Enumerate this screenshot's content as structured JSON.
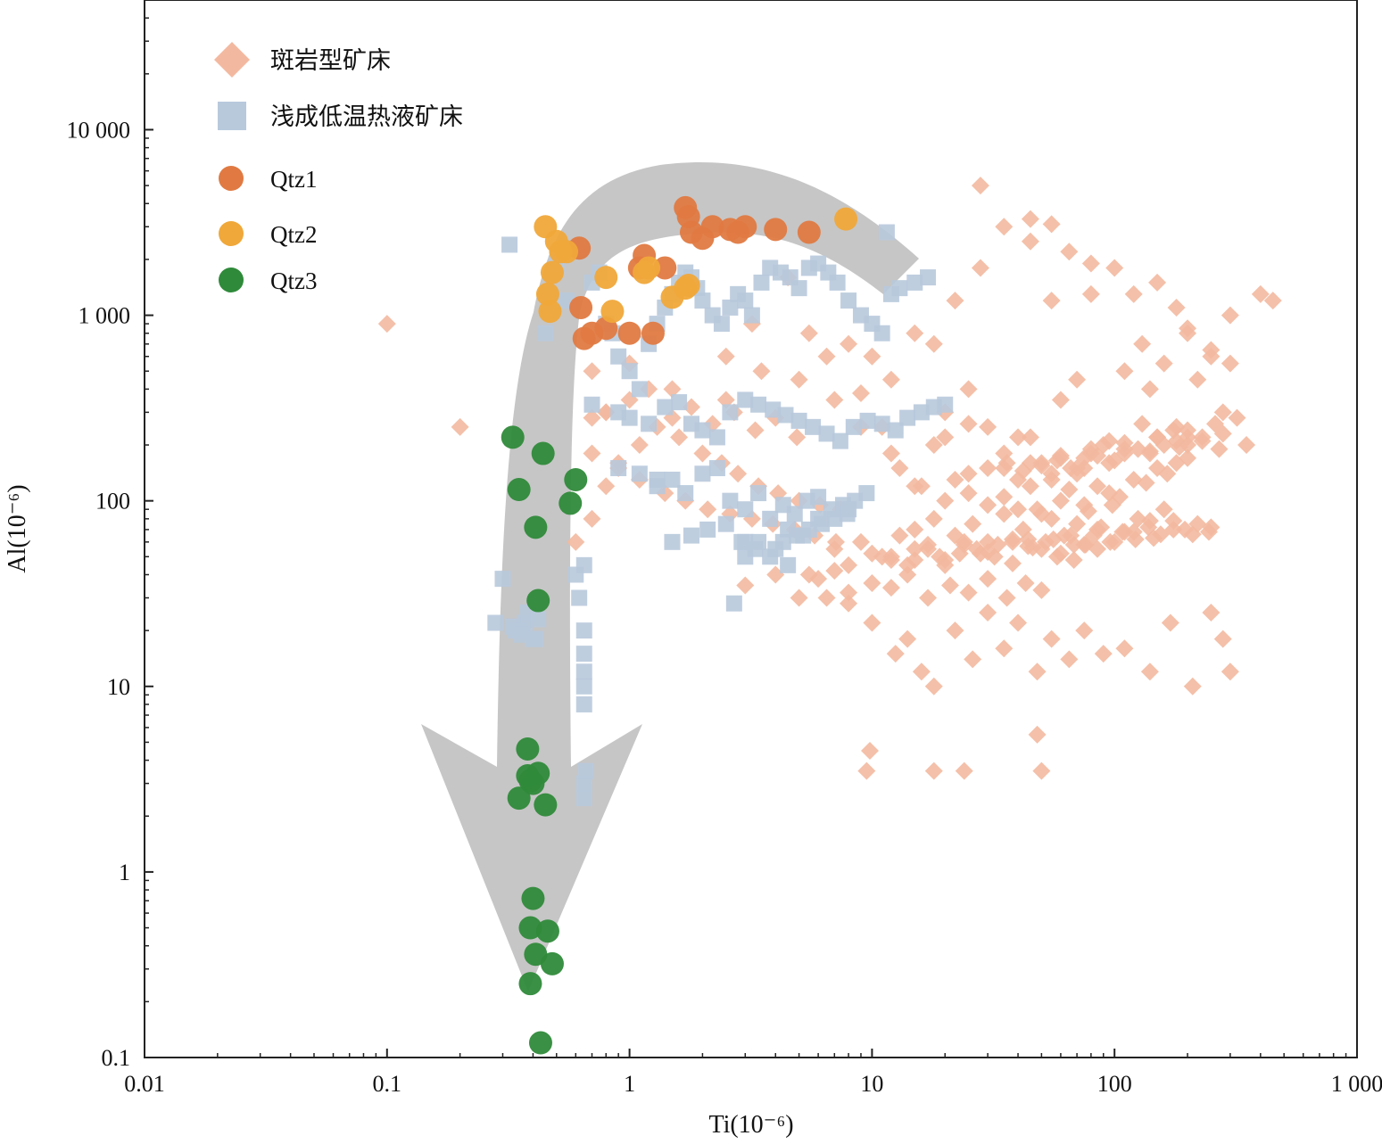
{
  "chart_data": {
    "type": "scatter",
    "title": "",
    "xlabel": "Ti(10⁻⁶)",
    "ylabel": "Al(10⁻⁶)",
    "x_scale": "log",
    "y_scale": "log",
    "xlim": [
      0.01,
      1000
    ],
    "ylim": [
      0.1,
      50000
    ],
    "x_ticks": [
      "0.01",
      "0.1",
      "1",
      "10",
      "100",
      "1 000"
    ],
    "x_tick_values": [
      0.01,
      0.1,
      1,
      10,
      100,
      1000
    ],
    "y_ticks": [
      "0.1",
      "1",
      "10",
      "100",
      "1 000",
      "10 000"
    ],
    "y_tick_values": [
      0.1,
      1,
      10,
      100,
      1000,
      10000
    ],
    "grid": false,
    "legend_position": "top-left",
    "series": [
      {
        "name": "斑岩型矿床",
        "marker": "diamond",
        "color": "#f3b9a0",
        "x": [
          0.1,
          0.2,
          0.7,
          0.7,
          0.8,
          1.0,
          1.5,
          2.5,
          3.2,
          4.5,
          5.5,
          6.5,
          8.0,
          10,
          12,
          15,
          18,
          22,
          28,
          35,
          45,
          55,
          65,
          80,
          100,
          120,
          150,
          180,
          200,
          250,
          300,
          400,
          450,
          28,
          45,
          55,
          80,
          130,
          200,
          250,
          300,
          9,
          12,
          15,
          20,
          25,
          35,
          45,
          60,
          70,
          90,
          110,
          140,
          160,
          180,
          220,
          280,
          350,
          2.5,
          3.5,
          5,
          7,
          9,
          11,
          13,
          16,
          18,
          20,
          22,
          25,
          30,
          35,
          40,
          50,
          60,
          70,
          80,
          95,
          110,
          130,
          150,
          175,
          200,
          230,
          270,
          20,
          25,
          30,
          35,
          40,
          45,
          50,
          55,
          60,
          65,
          70,
          75,
          85,
          95,
          105,
          120,
          135,
          150,
          165,
          180,
          200,
          15,
          18,
          22,
          26,
          30,
          35,
          42,
          48,
          55,
          62,
          70,
          78,
          88,
          98,
          110,
          125,
          140,
          160,
          7,
          9,
          11,
          13,
          15,
          17,
          20,
          23,
          27,
          32,
          38,
          44,
          52,
          60,
          68,
          76,
          85,
          3,
          4,
          5,
          6,
          7,
          8,
          10,
          12,
          14,
          17,
          21,
          25,
          30,
          36,
          43,
          50,
          12,
          14,
          17,
          20,
          24,
          28,
          33,
          38,
          44,
          50,
          58,
          66,
          75,
          85,
          96,
          108,
          122,
          138,
          155,
          175,
          195,
          220,
          245,
          25,
          30,
          36,
          42,
          50,
          58,
          66,
          75,
          85,
          95,
          110,
          125,
          140,
          160,
          180,
          200,
          5.5,
          6.5,
          8,
          10,
          12.5,
          14,
          16,
          18,
          22,
          26,
          30,
          35,
          40,
          48,
          55,
          65,
          75,
          90,
          110,
          140,
          170,
          210,
          250,
          280,
          300,
          9.5,
          9.8,
          18,
          24,
          48,
          50,
          8,
          10,
          12,
          15,
          19,
          24,
          30,
          38,
          46,
          56,
          68,
          82,
          100,
          120,
          145,
          175,
          210,
          250,
          45,
          60,
          80,
          110,
          150,
          200,
          260,
          320,
          40,
          55,
          75,
          100,
          140,
          185,
          230,
          280,
          0.6,
          0.7,
          0.8,
          0.9,
          1.1,
          1.3,
          1.6,
          2.0,
          2.4,
          2.8,
          3.4,
          4.1,
          5.0,
          6.1,
          7.4,
          0.8,
          1.0,
          1.2,
          1.5,
          1.8,
          2.2,
          2.7,
          3.3,
          4.0,
          4.9,
          0.7,
          0.9,
          1.1,
          1.4,
          1.7,
          2.1,
          2.6,
          3.2,
          3.9,
          4.8,
          5.8,
          7.1
        ],
        "y": [
          900,
          250,
          280,
          500,
          300,
          550,
          400,
          350,
          900,
          1600,
          800,
          600,
          700,
          600,
          450,
          800,
          700,
          1200,
          5000,
          3000,
          3300,
          3100,
          2200,
          1900,
          1800,
          1300,
          1500,
          1100,
          850,
          600,
          1000,
          1300,
          1200,
          1800,
          2500,
          1200,
          1300,
          700,
          800,
          650,
          550,
          250,
          180,
          120,
          300,
          400,
          150,
          220,
          350,
          450,
          200,
          500,
          400,
          550,
          250,
          450,
          300,
          200,
          600,
          500,
          450,
          350,
          380,
          250,
          150,
          120,
          200,
          220,
          130,
          260,
          250,
          180,
          220,
          160,
          170,
          150,
          180,
          210,
          190,
          260,
          220,
          240,
          200,
          220,
          190,
          100,
          110,
          95,
          105,
          90,
          120,
          85,
          130,
          100,
          115,
          140,
          95,
          120,
          110,
          105,
          130,
          125,
          150,
          140,
          160,
          170,
          70,
          80,
          65,
          75,
          60,
          85,
          70,
          90,
          80,
          65,
          75,
          88,
          72,
          95,
          68,
          80,
          78,
          90,
          55,
          60,
          50,
          65,
          48,
          58,
          45,
          52,
          55,
          50,
          62,
          57,
          60,
          52,
          48,
          58,
          55,
          35,
          40,
          30,
          38,
          42,
          32,
          36,
          34,
          40,
          30,
          35,
          32,
          38,
          30,
          36,
          33,
          50,
          45,
          55,
          48,
          60,
          52,
          58,
          46,
          62,
          55,
          50,
          65,
          58,
          70,
          60,
          68,
          62,
          72,
          66,
          78,
          70,
          75,
          68,
          140,
          150,
          160,
          145,
          155,
          165,
          150,
          170,
          175,
          160,
          180,
          190,
          185,
          200,
          210,
          220,
          40,
          30,
          28,
          22,
          15,
          18,
          12,
          10,
          20,
          14,
          25,
          16,
          22,
          12,
          18,
          14,
          20,
          15,
          16,
          12,
          22,
          10,
          25,
          18,
          12,
          3.5,
          4.5,
          3.5,
          3.5,
          5.5,
          3.5,
          45,
          52,
          48,
          55,
          50,
          58,
          53,
          60,
          56,
          62,
          58,
          65,
          60,
          68,
          63,
          70,
          66,
          72,
          160,
          175,
          190,
          205,
          220,
          240,
          260,
          280,
          130,
          140,
          150,
          165,
          180,
          195,
          210,
          230,
          60,
          80,
          120,
          160,
          200,
          250,
          220,
          180,
          160,
          140,
          120,
          110,
          100,
          95,
          90,
          300,
          350,
          400,
          280,
          320,
          260,
          300,
          240,
          280,
          220,
          180,
          150,
          130,
          110,
          100,
          90,
          85,
          80,
          75,
          70,
          65,
          60
        ]
      },
      {
        "name": "浅成低温热液矿床",
        "marker": "square",
        "color": "#b8c9dc",
        "x": [
          0.32,
          0.35,
          0.37,
          0.38,
          0.4,
          0.42,
          0.45,
          0.5,
          0.55,
          0.6,
          0.62,
          0.65,
          0.65,
          0.65,
          0.65,
          0.65,
          0.65,
          0.65,
          0.65,
          0.66,
          0.7,
          0.75,
          0.8,
          0.85,
          0.9,
          1.0,
          1.1,
          1.2,
          1.3,
          1.4,
          1.5,
          1.6,
          1.7,
          1.8,
          1.9,
          2.0,
          2.2,
          2.4,
          2.6,
          2.8,
          3.0,
          3.2,
          3.5,
          3.8,
          4.2,
          4.6,
          5.0,
          5.5,
          6.0,
          6.6,
          7.2,
          8.0,
          9.0,
          10,
          11,
          12,
          13,
          15,
          17,
          0.9,
          1.0,
          1.2,
          1.4,
          1.6,
          1.8,
          2.0,
          2.3,
          2.6,
          3.0,
          3.4,
          3.9,
          4.4,
          5.0,
          5.7,
          6.5,
          7.4,
          8.4,
          9.6,
          11,
          12.5,
          14,
          16,
          18,
          20,
          1.3,
          1.5,
          1.7,
          2.0,
          2.3,
          2.6,
          3.0,
          3.4,
          3.8,
          4.3,
          4.8,
          5.4,
          6.0,
          6.8,
          7.6,
          8.5,
          9.5,
          1.5,
          1.8,
          2.1,
          2.5,
          2.9,
          3.3,
          3.8,
          4.3,
          4.9,
          5.5,
          6.2,
          7.0,
          7.9,
          2.7,
          3.0,
          3.4,
          4.0,
          4.5,
          5.2,
          0.3,
          0.28,
          0.33,
          0.34,
          0.36,
          0.41,
          0.7,
          0.9,
          1.1,
          1.3,
          3.0,
          4.5,
          6.0,
          8.0,
          11.5
        ],
        "y": [
          2400,
          20,
          22,
          25,
          18,
          23,
          800,
          1900,
          1200,
          40,
          30,
          45,
          20,
          15,
          12,
          10,
          8,
          3,
          2.5,
          3.5,
          1500,
          1700,
          900,
          800,
          600,
          500,
          400,
          700,
          900,
          1100,
          1300,
          1500,
          1700,
          1600,
          1400,
          1200,
          1000,
          900,
          1100,
          1300,
          1200,
          1000,
          1500,
          1800,
          1700,
          1600,
          1400,
          1800,
          1900,
          1700,
          1500,
          1200,
          1000,
          900,
          800,
          1300,
          1400,
          1500,
          1600,
          300,
          280,
          260,
          320,
          340,
          260,
          240,
          220,
          300,
          350,
          330,
          310,
          290,
          270,
          250,
          230,
          210,
          250,
          270,
          260,
          240,
          280,
          300,
          320,
          330,
          120,
          130,
          110,
          140,
          150,
          100,
          90,
          110,
          80,
          95,
          85,
          100,
          105,
          90,
          95,
          100,
          110,
          60,
          65,
          70,
          75,
          60,
          55,
          50,
          60,
          65,
          70,
          75,
          80,
          85,
          28,
          50,
          60,
          55,
          45,
          65,
          38,
          22,
          21,
          20,
          19,
          18,
          330,
          150,
          140,
          130,
          60,
          70,
          80,
          90,
          2800
        ]
      },
      {
        "name": "Qtz1",
        "marker": "circle",
        "color": "#e07a42",
        "x": [
          0.62,
          0.63,
          0.65,
          0.7,
          0.8,
          1.0,
          1.1,
          1.15,
          1.25,
          1.4,
          1.7,
          1.75,
          1.8,
          2.0,
          2.2,
          2.6,
          2.8,
          3.0,
          4.0,
          5.5
        ],
        "y": [
          2300,
          1100,
          750,
          800,
          850,
          800,
          1800,
          2100,
          800,
          1800,
          3800,
          3400,
          2800,
          2600,
          3000,
          2900,
          2800,
          3000,
          2900,
          2800
        ]
      },
      {
        "name": "Qtz2",
        "marker": "circle",
        "color": "#f0a83a",
        "x": [
          0.45,
          0.46,
          0.47,
          0.48,
          0.5,
          0.52,
          0.55,
          0.8,
          0.85,
          1.15,
          1.2,
          1.5,
          1.7,
          1.75,
          7.8
        ],
        "y": [
          3000,
          1300,
          1050,
          1700,
          2500,
          2200,
          2200,
          1600,
          1050,
          1700,
          1800,
          1250,
          1400,
          1450,
          3300
        ]
      },
      {
        "name": "Qtz3",
        "marker": "circle",
        "color": "#2f8a3a",
        "x": [
          0.33,
          0.35,
          0.38,
          0.4,
          0.41,
          0.42,
          0.44,
          0.57,
          0.6,
          0.38,
          0.42,
          0.39,
          0.35,
          0.45,
          0.4,
          0.39,
          0.46,
          0.41,
          0.48,
          0.39,
          0.43
        ],
        "y": [
          220,
          115,
          4.6,
          3.0,
          72,
          29,
          180,
          97,
          130,
          3.3,
          3.4,
          3.1,
          2.5,
          2.3,
          0.72,
          0.5,
          0.48,
          0.36,
          0.32,
          0.25,
          0.12
        ]
      }
    ]
  }
}
